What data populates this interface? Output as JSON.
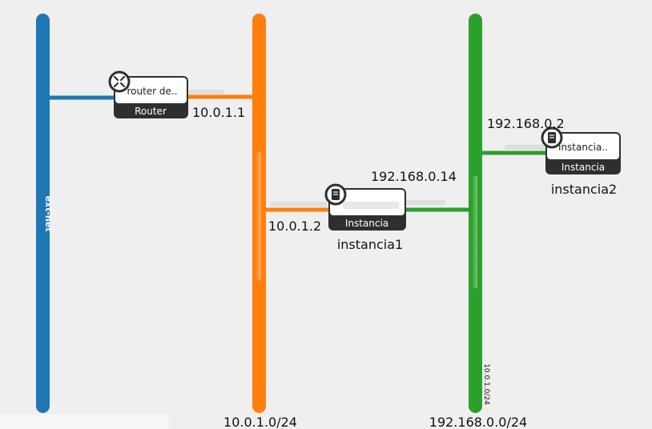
{
  "networks": [
    {
      "id": "ext-net",
      "name": "ext-net",
      "color": "#1f77b4"
    },
    {
      "id": "net1",
      "cidr": "10.0.1.0/24",
      "color": "#ff7f0e"
    },
    {
      "id": "net2",
      "cidr": "192.168.0.0/24",
      "secondary_cidr": "10.0.1.0/24",
      "color": "#2ca02c"
    }
  ],
  "nodes": {
    "router": {
      "title": "router de..",
      "type": "Router",
      "icon": "router-icon"
    },
    "instancia1": {
      "title": "",
      "type": "Instancia",
      "name": "instancia1",
      "icon": "server-icon"
    },
    "instancia2": {
      "title": "instancia..",
      "type": "Instancia",
      "name": "instancia2",
      "icon": "server-icon"
    }
  },
  "links": {
    "router_net1_ip": "10.0.1.1",
    "inst1_net1_ip": "10.0.1.2",
    "inst1_net2_ip": "192.168.0.14",
    "inst2_net2_ip": "192.168.0.2"
  }
}
